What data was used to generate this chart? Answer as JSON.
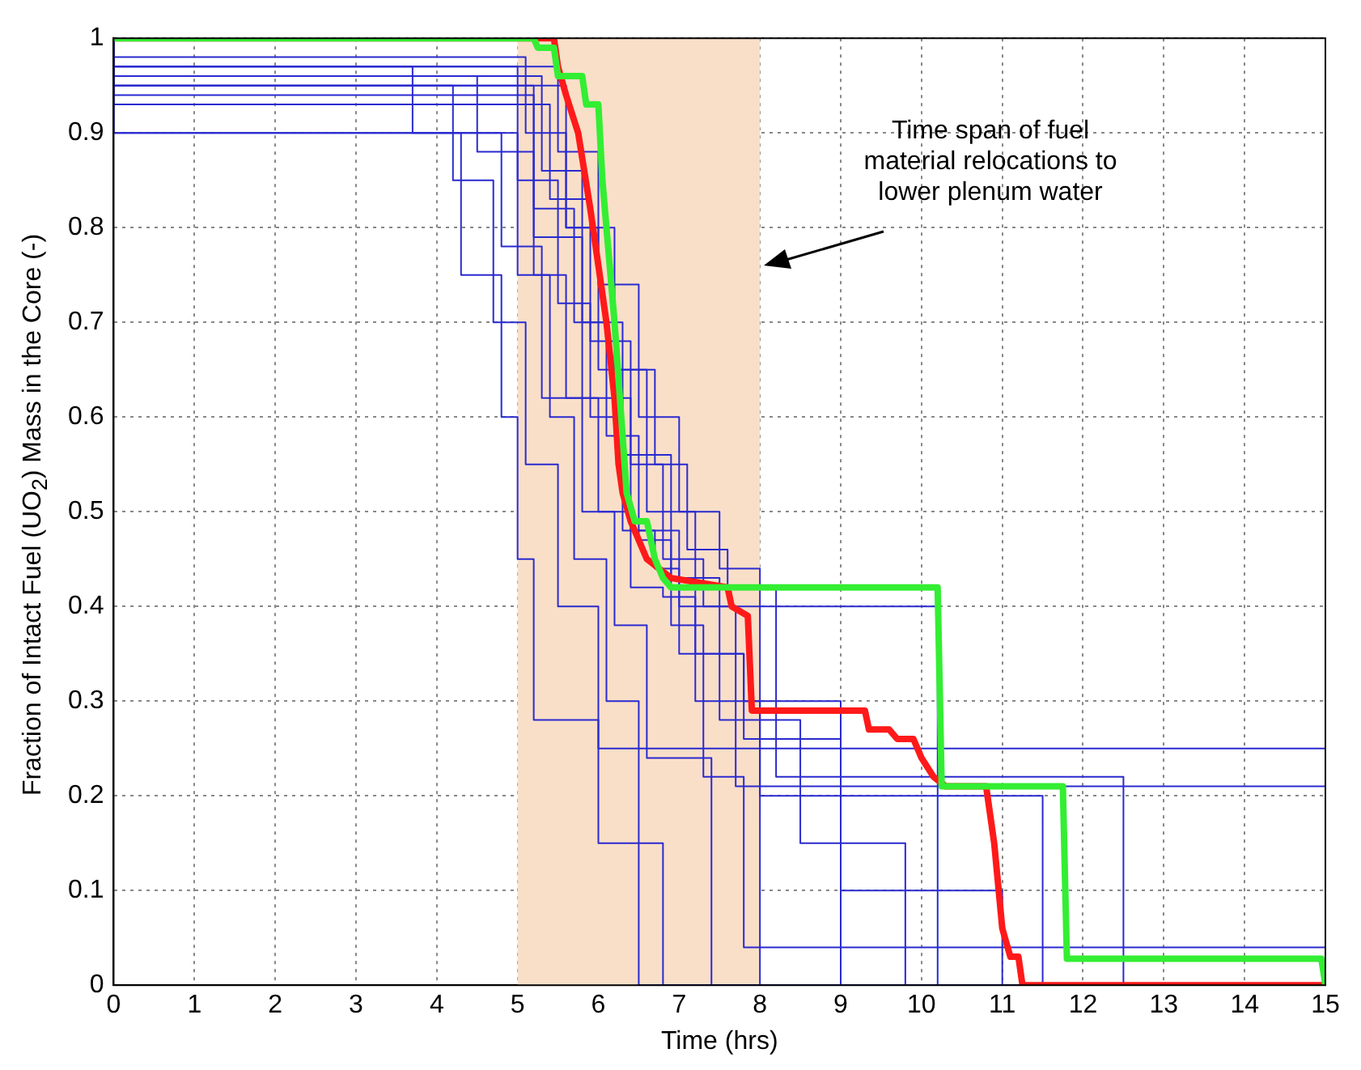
{
  "chart_data": {
    "type": "line",
    "xlabel": "Time (hrs)",
    "ylabel": "Fraction of Intact Fuel (UO$_{2}$) Mass in the Core (-)",
    "xlim": [
      0,
      15
    ],
    "ylim": [
      0,
      1
    ],
    "xticks": [
      0,
      1,
      2,
      3,
      4,
      5,
      6,
      7,
      8,
      9,
      10,
      11,
      12,
      13,
      14,
      15
    ],
    "yticks": [
      0,
      0.1,
      0.2,
      0.3,
      0.4,
      0.5,
      0.6,
      0.7,
      0.8,
      0.9,
      1
    ],
    "grid": true,
    "line_style": "solid",
    "marker": "none",
    "bands": [
      {
        "axis": "x",
        "from": 5,
        "to": 8,
        "color": "#f9dfc8"
      }
    ],
    "annotations": [
      "Time span of fuel material relocations to lower plenum water"
    ],
    "series": [
      {
        "type": "step",
        "color": "#2a2ad0",
        "x": [
          0,
          3.7,
          4.3,
          4.8,
          5.0,
          5.2,
          6.0,
          8.5,
          15
        ],
        "values": [
          1,
          0.97,
          0.9,
          0.75,
          0.6,
          0.45,
          0.28,
          0.25,
          0.25
        ]
      },
      {
        "type": "step",
        "color": "#2a2ad0",
        "x": [
          0,
          4.5,
          5.2,
          5.6,
          6.0,
          6.4,
          6.8,
          7.2,
          9.0,
          10.5
        ],
        "values": [
          1,
          0.96,
          0.88,
          0.75,
          0.62,
          0.5,
          0.42,
          0.41,
          0.3,
          0
        ]
      },
      {
        "type": "step",
        "color": "#2a2ad0",
        "x": [
          0,
          5.0,
          5.5,
          5.9,
          6.3,
          6.7,
          7.0,
          10.2,
          11.9
        ],
        "values": [
          1,
          0.97,
          0.85,
          0.72,
          0.6,
          0.48,
          0.44,
          0.4,
          0
        ]
      },
      {
        "type": "step",
        "color": "#2a2ad0",
        "x": [
          0,
          5.2,
          5.7,
          6.1,
          6.5,
          6.9,
          7.3,
          7.8,
          12.0,
          15
        ],
        "values": [
          1,
          0.95,
          0.82,
          0.7,
          0.58,
          0.47,
          0.38,
          0.22,
          0.04,
          0.04
        ]
      },
      {
        "type": "step",
        "color": "#2a2ad0",
        "x": [
          0,
          5.1,
          5.6,
          6.0,
          6.6,
          7.2,
          7.8,
          8.0,
          11.0
        ],
        "values": [
          1,
          0.98,
          0.9,
          0.8,
          0.65,
          0.5,
          0.35,
          0.3,
          0
        ]
      },
      {
        "type": "step",
        "color": "#2a2ad0",
        "x": [
          0,
          4.8,
          5.3,
          5.8,
          6.2,
          6.6,
          7.4,
          10.0
        ],
        "values": [
          1,
          0.9,
          0.78,
          0.62,
          0.5,
          0.38,
          0.24,
          0
        ]
      },
      {
        "type": "step",
        "color": "#2a2ad0",
        "x": [
          0,
          5.4,
          5.9,
          6.4,
          6.8,
          7.3,
          7.7,
          14.9,
          15
        ],
        "values": [
          1,
          0.93,
          0.83,
          0.68,
          0.55,
          0.45,
          0.4,
          0.21,
          0.21
        ]
      },
      {
        "type": "step",
        "color": "#2a2ad0",
        "x": [
          0,
          5.3,
          5.8,
          6.3,
          6.9,
          7.5,
          8.5,
          9.8,
          10.8
        ],
        "values": [
          1,
          0.96,
          0.86,
          0.7,
          0.56,
          0.43,
          0.28,
          0.15,
          0
        ]
      },
      {
        "type": "step",
        "color": "#2a2ad0",
        "x": [
          0,
          5.0,
          5.4,
          5.7,
          6.1,
          6.5,
          9.5
        ],
        "values": [
          1,
          0.9,
          0.75,
          0.6,
          0.45,
          0.3,
          0
        ]
      },
      {
        "type": "step",
        "color": "#2a2ad0",
        "x": [
          0,
          5.5,
          6.0,
          6.5,
          7.0,
          7.5,
          8.0,
          11.5,
          13.1
        ],
        "values": [
          1,
          0.97,
          0.88,
          0.74,
          0.6,
          0.5,
          0.44,
          0.2,
          0
        ]
      },
      {
        "type": "step",
        "color": "#2a2ad0",
        "x": [
          0,
          5.6,
          6.2,
          6.7,
          7.1,
          7.6,
          8.2,
          12.5,
          14.0
        ],
        "values": [
          1,
          0.95,
          0.8,
          0.65,
          0.55,
          0.46,
          0.42,
          0.22,
          0
        ]
      },
      {
        "type": "step",
        "color": "#2a2ad0",
        "x": [
          0,
          4.2,
          4.7,
          5.1,
          5.5,
          6.0,
          6.8,
          9.2
        ],
        "values": [
          1,
          0.95,
          0.85,
          0.7,
          0.55,
          0.4,
          0.15,
          0
        ]
      },
      {
        "type": "step",
        "color": "#2a2ad0",
        "x": [
          0,
          5.2,
          5.8,
          6.4,
          7.0,
          7.8,
          9.0,
          11.0,
          12.8
        ],
        "values": [
          1,
          0.94,
          0.79,
          0.62,
          0.48,
          0.35,
          0.26,
          0.1,
          0
        ]
      },
      {
        "type": "line",
        "color": "#ff1a1a",
        "x": [
          0,
          5.45,
          5.5,
          5.6,
          5.75,
          5.9,
          6.0,
          6.1,
          6.2,
          6.25,
          6.3,
          6.4,
          6.6,
          6.9,
          7.6,
          7.65,
          7.85,
          7.9,
          9.3,
          9.35,
          9.6,
          9.7,
          9.9,
          10.0,
          10.15,
          10.3,
          10.8,
          10.9,
          11.0,
          11.1,
          11.2,
          11.25,
          15
        ],
        "values": [
          1,
          1,
          0.97,
          0.94,
          0.9,
          0.82,
          0.76,
          0.7,
          0.62,
          0.55,
          0.52,
          0.49,
          0.45,
          0.43,
          0.42,
          0.4,
          0.39,
          0.29,
          0.29,
          0.27,
          0.27,
          0.26,
          0.26,
          0.24,
          0.22,
          0.21,
          0.21,
          0.15,
          0.06,
          0.03,
          0.03,
          0,
          0
        ]
      },
      {
        "type": "line",
        "color": "#33ee33",
        "x": [
          0,
          5.2,
          5.25,
          5.45,
          5.5,
          5.8,
          5.85,
          6.0,
          6.05,
          6.1,
          6.2,
          6.3,
          6.35,
          6.45,
          6.6,
          6.7,
          6.8,
          6.9,
          10.2,
          10.25,
          11.75,
          11.8,
          14.95,
          15
        ],
        "values": [
          1,
          1,
          0.99,
          0.99,
          0.96,
          0.96,
          0.93,
          0.93,
          0.85,
          0.8,
          0.7,
          0.58,
          0.52,
          0.49,
          0.49,
          0.45,
          0.43,
          0.42,
          0.42,
          0.21,
          0.21,
          0.028,
          0.028,
          0
        ]
      }
    ]
  }
}
